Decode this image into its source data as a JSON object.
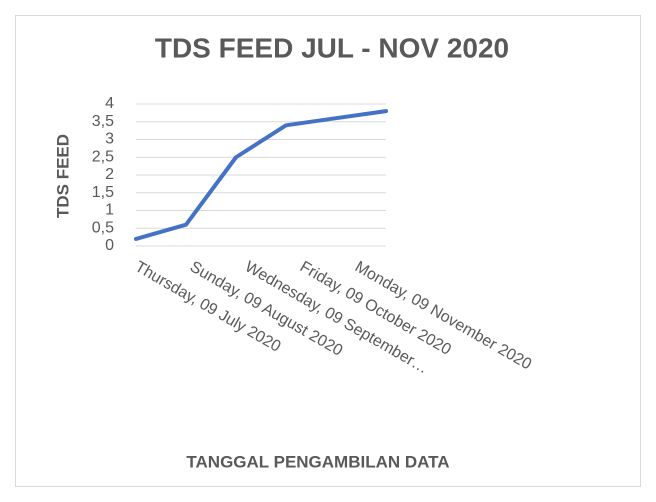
{
  "chart_data": {
    "type": "line",
    "title": "TDS FEED  JUL - NOV 2020",
    "x_label": "TANGGAL PENGAMBILAN DATA",
    "y_label": "TDS FEED",
    "categories": [
      "Thursday, 09 July 2020",
      "Sunday, 09 August 2020",
      "Wednesday, 09 September…",
      "Friday, 09 October 2020",
      "Monday, 09 November 2020",
      null
    ],
    "series": [
      {
        "name": "TDS FEED",
        "color": "#4472c4",
        "values": [
          0.2,
          0.6,
          2.5,
          3.4,
          3.6,
          3.8
        ]
      }
    ],
    "ylim": [
      0,
      4
    ],
    "yticks": [
      0,
      {
        "value": 0.5,
        "label": "0,5"
      },
      1,
      {
        "value": 1.5,
        "label": "1,5"
      },
      2,
      {
        "value": 2.5,
        "label": "2,5"
      },
      3,
      {
        "value": 3.5,
        "label": "3,5"
      },
      4
    ],
    "grid": true
  }
}
